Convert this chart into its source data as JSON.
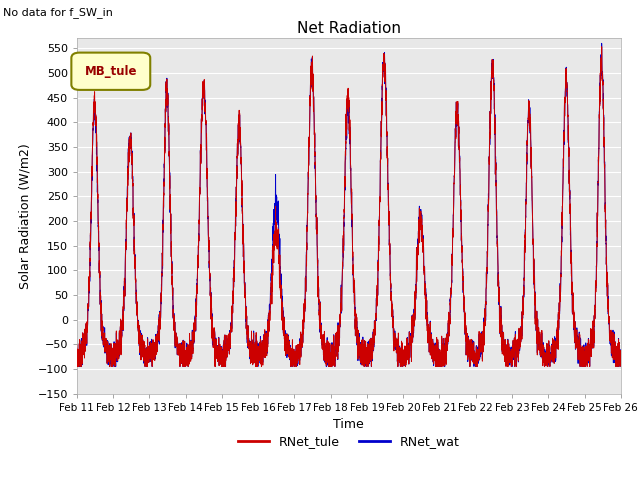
{
  "title": "Net Radiation",
  "subtitle": "No data for f_SW_in",
  "xlabel": "Time",
  "ylabel": "Solar Radiation (W/m2)",
  "ylim": [
    -150,
    570
  ],
  "yticks": [
    -150,
    -100,
    -50,
    0,
    50,
    100,
    150,
    200,
    250,
    300,
    350,
    400,
    450,
    500,
    550
  ],
  "color_tule": "#cc0000",
  "color_wat": "#0000cc",
  "legend_label_tule": "RNet_tule",
  "legend_label_wat": "RNet_wat",
  "legend_box_label": "MB_tule",
  "x_tick_labels": [
    "Feb 11",
    "Feb 12",
    "Feb 13",
    "Feb 14",
    "Feb 15",
    "Feb 16",
    "Feb 17",
    "Feb 18",
    "Feb 19",
    "Feb 20",
    "Feb 21",
    "Feb 22",
    "Feb 23",
    "Feb 24",
    "Feb 25",
    "Feb 26"
  ],
  "plot_bg_color": "#e8e8e8",
  "tule_peaks": [
    455,
    370,
    465,
    470,
    395,
    180,
    505,
    450,
    525,
    205,
    430,
    510,
    430,
    490,
    525
  ],
  "wat_peaks": [
    440,
    375,
    465,
    470,
    395,
    240,
    505,
    435,
    525,
    210,
    430,
    515,
    430,
    490,
    530
  ],
  "night_min": -80,
  "noise_level": 15,
  "line_width": 0.7
}
